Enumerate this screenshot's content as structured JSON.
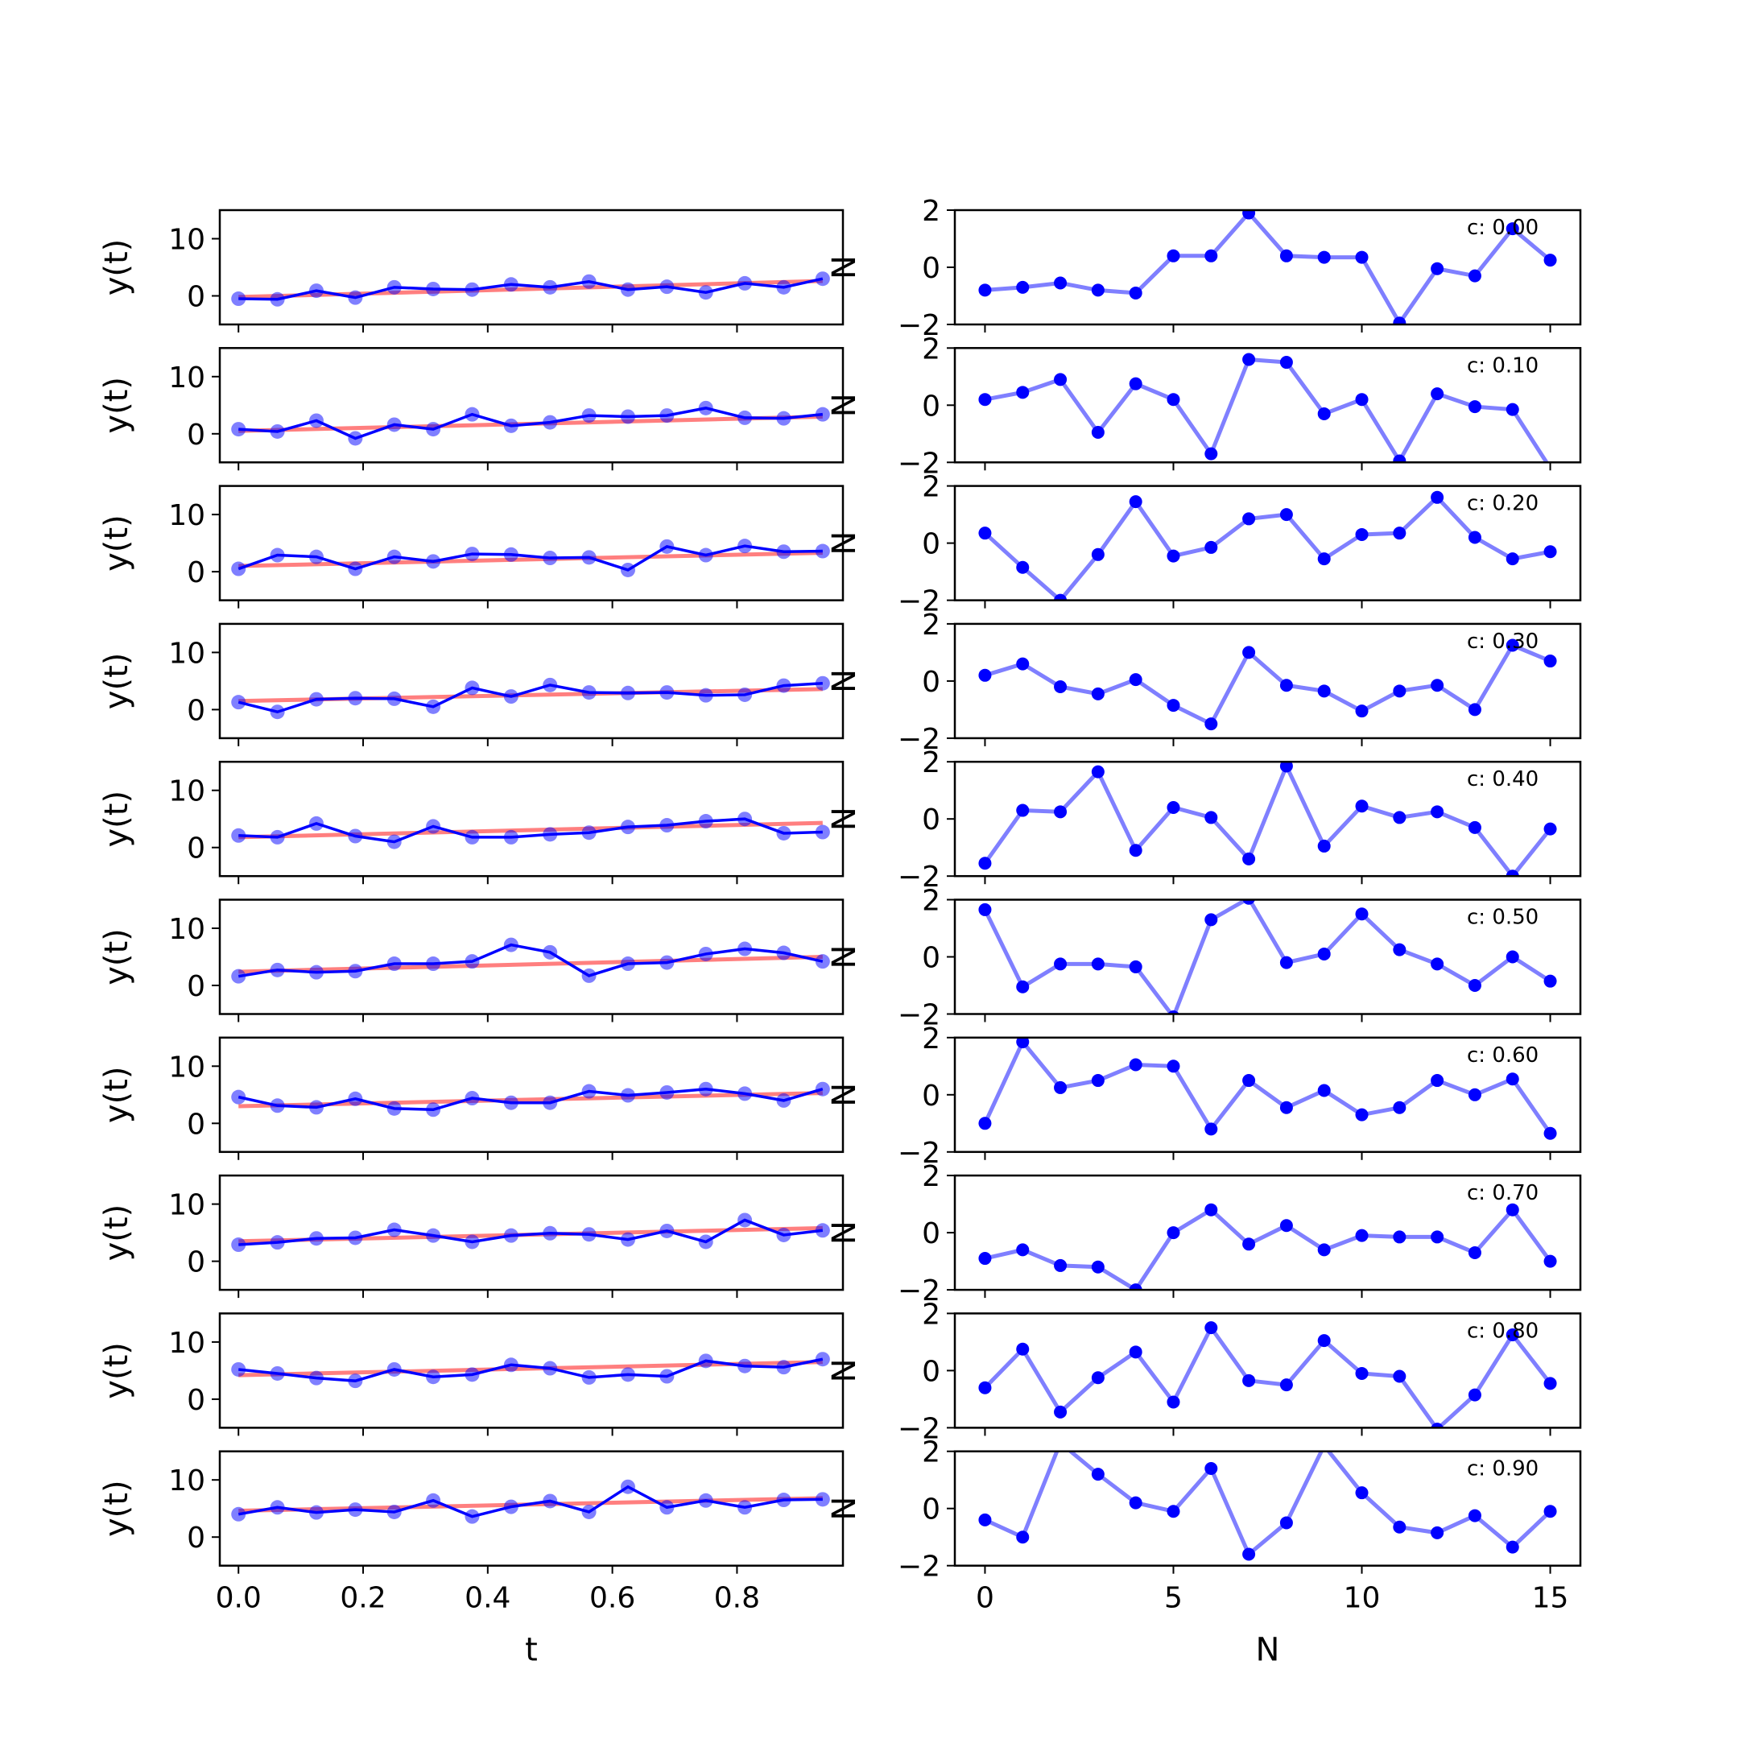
{
  "chart_data": {
    "type": "line",
    "layout": "10 rows x 2 columns of line plots",
    "left_column": {
      "ylabel": "y(t)",
      "xlabel": "t",
      "xlim": [
        -0.03,
        0.97
      ],
      "ylim": [
        -5,
        15
      ],
      "xticks": [
        0.0,
        0.2,
        0.4,
        0.6,
        0.8
      ],
      "xtick_labels": [
        "0.0",
        "0.2",
        "0.4",
        "0.6",
        "0.8"
      ],
      "yticks": [
        0,
        10
      ],
      "ytick_labels": [
        "0",
        "10"
      ],
      "x": [
        0.0,
        0.0625,
        0.125,
        0.1875,
        0.25,
        0.3125,
        0.375,
        0.4375,
        0.5,
        0.5625,
        0.625,
        0.6875,
        0.75,
        0.8125,
        0.875,
        0.9375
      ],
      "series_colors": {
        "data": "#0000ff",
        "fit": "#ff0000"
      }
    },
    "right_column": {
      "ylabel": "N",
      "xlabel": "N",
      "xlim": [
        -0.8,
        15.8
      ],
      "ylim": [
        -2,
        2
      ],
      "xticks": [
        0,
        5,
        10,
        15
      ],
      "xtick_labels": [
        "0",
        "5",
        "10",
        "15"
      ],
      "yticks": [
        -2,
        0,
        2
      ],
      "ytick_labels": [
        "−2",
        "0",
        "2"
      ],
      "x": [
        0,
        1,
        2,
        3,
        4,
        5,
        6,
        7,
        8,
        9,
        10,
        11,
        12,
        13,
        14,
        15
      ],
      "series_color": "#0000ff"
    },
    "rows": [
      {
        "c_label": "c: 0.00",
        "y": [
          -0.5,
          -0.6,
          0.9,
          -0.3,
          1.5,
          1.2,
          1.1,
          2.0,
          1.5,
          2.5,
          1.1,
          1.6,
          0.6,
          2.2,
          1.5,
          3.0
        ],
        "fit": [
          -0.2,
          2.6
        ],
        "noise": [
          -0.8,
          -0.7,
          -0.55,
          -0.8,
          -0.9,
          0.4,
          0.4,
          1.9,
          0.4,
          0.35,
          0.35,
          -1.95,
          -0.05,
          -0.3,
          1.35,
          0.25
        ]
      },
      {
        "c_label": "c: 0.10",
        "y": [
          0.8,
          0.4,
          2.3,
          -0.8,
          1.6,
          0.8,
          3.4,
          1.4,
          2.0,
          3.2,
          3.0,
          3.2,
          4.5,
          2.8,
          2.7,
          3.4
        ],
        "fit": [
          0.5,
          3.0
        ],
        "noise": [
          0.2,
          0.45,
          0.9,
          -0.95,
          0.75,
          0.2,
          -1.7,
          1.6,
          1.5,
          -0.3,
          0.2,
          -1.95,
          0.4,
          -0.05,
          -0.15,
          -2.2
        ]
      },
      {
        "c_label": "c: 0.20",
        "y": [
          0.5,
          2.9,
          2.6,
          0.5,
          2.6,
          1.8,
          3.1,
          3.0,
          2.4,
          2.5,
          0.3,
          4.4,
          2.9,
          4.5,
          3.5,
          3.6
        ],
        "fit": [
          1.0,
          3.3
        ],
        "noise": [
          0.35,
          -0.85,
          -2.0,
          -0.4,
          1.45,
          -0.45,
          -0.15,
          0.85,
          1.0,
          -0.55,
          0.3,
          0.35,
          1.6,
          0.2,
          -0.55,
          -0.3
        ]
      },
      {
        "c_label": "c: 0.30",
        "y": [
          1.3,
          -0.4,
          1.8,
          2.0,
          1.9,
          0.5,
          3.8,
          2.3,
          4.3,
          3.0,
          2.9,
          3.0,
          2.5,
          2.6,
          4.2,
          4.6
        ],
        "fit": [
          1.5,
          3.6
        ],
        "noise": [
          0.2,
          0.6,
          -0.2,
          -0.45,
          0.05,
          -0.85,
          -1.5,
          1.0,
          -0.15,
          -0.35,
          -1.05,
          -0.35,
          -0.15,
          -1.0,
          1.25,
          0.7
        ]
      },
      {
        "c_label": "c: 0.40",
        "y": [
          2.1,
          1.8,
          4.2,
          2.0,
          1.0,
          3.7,
          1.8,
          1.8,
          2.3,
          2.6,
          3.6,
          3.9,
          4.6,
          5.0,
          2.5,
          2.7
        ],
        "fit": [
          1.8,
          4.3
        ],
        "noise": [
          -1.55,
          0.3,
          0.25,
          1.65,
          -1.1,
          0.4,
          0.05,
          -1.4,
          1.85,
          -0.95,
          0.45,
          0.05,
          0.25,
          -0.3,
          -2.0,
          -0.35
        ]
      },
      {
        "c_label": "c: 0.50",
        "y": [
          1.6,
          2.7,
          2.3,
          2.5,
          3.8,
          3.8,
          4.2,
          7.1,
          5.8,
          1.7,
          3.8,
          4.0,
          5.5,
          6.4,
          5.7,
          4.2
        ],
        "fit": [
          2.4,
          5.0
        ],
        "noise": [
          1.65,
          -1.05,
          -0.25,
          -0.25,
          -0.35,
          -2.1,
          1.3,
          2.05,
          -0.2,
          0.1,
          1.5,
          0.25,
          -0.25,
          -1.0,
          0.0,
          -0.85
        ]
      },
      {
        "c_label": "c: 0.60",
        "y": [
          4.6,
          3.1,
          2.8,
          4.3,
          2.6,
          2.4,
          4.4,
          3.6,
          3.6,
          5.6,
          4.9,
          5.4,
          6.0,
          5.2,
          4.0,
          6.0
        ],
        "fit": [
          3.0,
          5.3
        ],
        "noise": [
          -1.0,
          1.85,
          0.25,
          0.5,
          1.05,
          1.0,
          -1.2,
          0.5,
          -0.45,
          0.15,
          -0.7,
          -0.45,
          0.5,
          0.0,
          0.55,
          -1.35
        ]
      },
      {
        "c_label": "c: 0.70",
        "y": [
          2.9,
          3.3,
          4.0,
          4.1,
          5.5,
          4.5,
          3.4,
          4.5,
          4.9,
          4.7,
          3.8,
          5.3,
          3.4,
          7.2,
          4.6,
          5.4
        ],
        "fit": [
          3.5,
          5.8
        ],
        "noise": [
          -0.9,
          -0.6,
          -1.15,
          -1.2,
          -2.0,
          0.0,
          0.8,
          -0.4,
          0.25,
          -0.6,
          -0.1,
          -0.15,
          -0.15,
          -0.7,
          0.8,
          -1.0
        ]
      },
      {
        "c_label": "c: 0.80",
        "y": [
          5.2,
          4.5,
          3.7,
          3.2,
          5.2,
          3.9,
          4.3,
          6.0,
          5.4,
          3.8,
          4.3,
          4.0,
          6.7,
          5.8,
          5.6,
          7.0
        ],
        "fit": [
          4.2,
          6.5
        ],
        "noise": [
          -0.6,
          0.75,
          -1.45,
          -0.25,
          0.65,
          -1.1,
          1.5,
          -0.35,
          -0.5,
          1.05,
          -0.1,
          -0.2,
          -2.05,
          -0.85,
          1.25,
          -0.45
        ]
      },
      {
        "c_label": "c: 0.90",
        "y": [
          4.0,
          5.2,
          4.3,
          4.8,
          4.4,
          6.4,
          3.6,
          5.3,
          6.3,
          4.4,
          8.8,
          5.2,
          6.4,
          5.2,
          6.5,
          6.6
        ],
        "fit": [
          4.6,
          6.8
        ],
        "noise": [
          -0.4,
          -1.0,
          2.3,
          1.2,
          0.2,
          -0.1,
          1.4,
          -1.6,
          -0.5,
          2.2,
          0.55,
          -0.65,
          -0.85,
          -0.25,
          -1.35,
          -0.1
        ]
      }
    ]
  }
}
